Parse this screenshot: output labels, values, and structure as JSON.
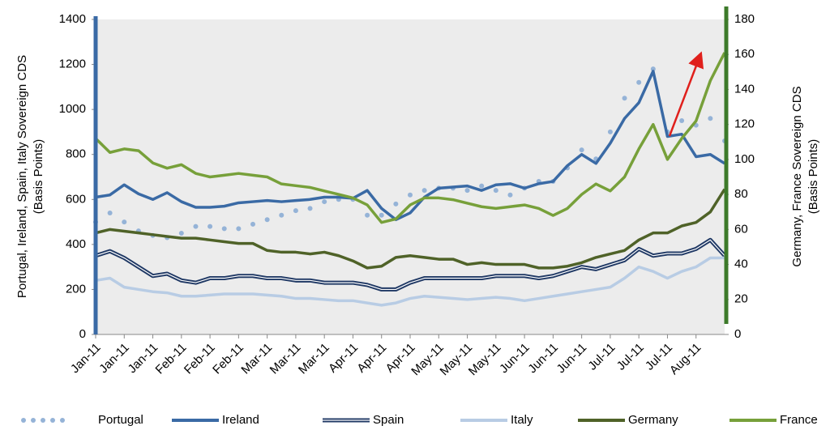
{
  "chart_data": {
    "type": "line",
    "ylabel": [
      "Portugal, Ireland, Spain, Italy Sovereign CDS",
      "(Basis Points)"
    ],
    "y2label": [
      "Germany, France Sovereign CDS",
      "(Basis Points)"
    ],
    "categories": [
      "Jan-11",
      null,
      "Jan-11",
      null,
      "Jan-11",
      null,
      "Feb-11",
      null,
      "Feb-11",
      null,
      "Feb-11",
      null,
      "Mar-11",
      null,
      "Mar-11",
      null,
      "Mar-11",
      null,
      "Apr-11",
      null,
      "Apr-11",
      null,
      "Apr-11",
      null,
      "May-11",
      null,
      "May-11",
      null,
      "May-11",
      null,
      "Jun-11",
      null,
      "Jun-11",
      null,
      "Jun-11",
      null,
      "Jul-11",
      null,
      "Jul-11",
      null,
      "Jul-11",
      null,
      "Aug-11",
      null,
      null
    ],
    "ylim": [
      0,
      1400
    ],
    "yticks": [
      0,
      200,
      400,
      600,
      800,
      1000,
      1200,
      1400
    ],
    "y2lim": [
      0,
      180
    ],
    "y2ticks": [
      0,
      20,
      40,
      60,
      80,
      100,
      120,
      140,
      160,
      180
    ],
    "y_axis_color": "#3a6aa5",
    "y2_axis_color": "#3d7a2a",
    "series": [
      {
        "name": "Portugal",
        "color": "#95b3d7",
        "dash": "dotted",
        "values": [
          500,
          540,
          500,
          460,
          440,
          430,
          450,
          480,
          480,
          470,
          470,
          490,
          510,
          530,
          550,
          560,
          590,
          600,
          600,
          530,
          530,
          580,
          620,
          640,
          650,
          650,
          640,
          660,
          640,
          620,
          650,
          680,
          680,
          740,
          820,
          780,
          900,
          1050,
          1120,
          1180,
          900,
          950,
          930,
          960,
          860
        ]
      },
      {
        "name": "Ireland",
        "color": "#3a6aa5",
        "values": [
          610,
          620,
          665,
          625,
          600,
          630,
          590,
          565,
          565,
          570,
          585,
          590,
          595,
          590,
          595,
          600,
          610,
          610,
          605,
          640,
          560,
          510,
          540,
          610,
          650,
          655,
          660,
          640,
          665,
          670,
          650,
          670,
          680,
          750,
          800,
          760,
          850,
          960,
          1030,
          1170,
          880,
          890,
          790,
          800,
          760
        ]
      },
      {
        "name": "Spain",
        "color": "#1f3864",
        "double": true,
        "values": [
          350,
          370,
          340,
          300,
          260,
          270,
          240,
          230,
          250,
          250,
          260,
          260,
          250,
          250,
          240,
          240,
          230,
          230,
          230,
          220,
          200,
          200,
          230,
          250,
          250,
          250,
          250,
          250,
          260,
          260,
          260,
          250,
          260,
          280,
          300,
          290,
          310,
          330,
          380,
          350,
          360,
          360,
          380,
          420,
          350
        ]
      },
      {
        "name": "Italy",
        "color": "#b8cce4",
        "values": [
          240,
          250,
          210,
          200,
          190,
          185,
          170,
          170,
          175,
          180,
          180,
          180,
          175,
          170,
          160,
          160,
          155,
          150,
          150,
          140,
          130,
          140,
          160,
          170,
          165,
          160,
          155,
          160,
          165,
          160,
          150,
          160,
          170,
          180,
          190,
          200,
          210,
          250,
          300,
          280,
          250,
          280,
          300,
          340,
          340
        ]
      },
      {
        "name": "Germany",
        "color": "#4f6228",
        "axis": "y2",
        "values": [
          58,
          60,
          59,
          58,
          57,
          56,
          55,
          55,
          54,
          53,
          52,
          52,
          48,
          47,
          47,
          46,
          47,
          45,
          42,
          38,
          39,
          44,
          45,
          44,
          43,
          43,
          40,
          41,
          40,
          40,
          40,
          38,
          38,
          39,
          41,
          44,
          46,
          48,
          54,
          58,
          58,
          62,
          64,
          70,
          83
        ]
      },
      {
        "name": "France",
        "color": "#77a03a",
        "axis": "y2",
        "values": [
          112,
          104,
          106,
          105,
          98,
          95,
          97,
          92,
          90,
          91,
          92,
          91,
          90,
          86,
          85,
          84,
          82,
          80,
          78,
          74,
          64,
          66,
          74,
          78,
          78,
          77,
          75,
          73,
          72,
          73,
          74,
          72,
          68,
          72,
          80,
          86,
          82,
          90,
          106,
          120,
          100,
          112,
          122,
          145,
          161
        ]
      }
    ]
  }
}
